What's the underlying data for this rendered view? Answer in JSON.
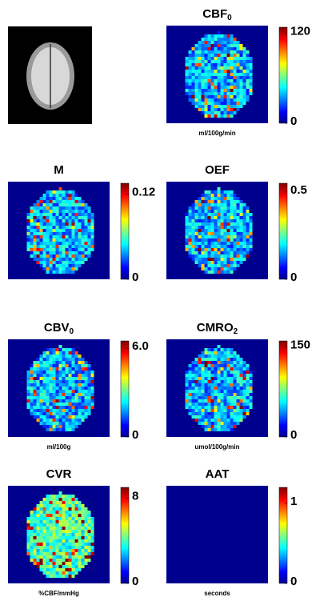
{
  "panels": [
    {
      "title": "CBF",
      "title_sub": "0",
      "clim": [
        0,
        128
      ],
      "cticks": [
        0,
        120
      ],
      "unit": "ml/100g/min"
    },
    {
      "title": "M",
      "clim": [
        0,
        0.135
      ],
      "cticks": [
        0,
        0.12
      ]
    },
    {
      "title": "OEF",
      "clim": [
        0,
        0.55
      ],
      "cticks": [
        0,
        0.5
      ]
    },
    {
      "title": "CBV",
      "title_sub": "0",
      "clim": [
        0,
        6.5
      ],
      "cticks": [
        0,
        {
          "value": 6,
          "label": "6.0"
        }
      ],
      "unit": "ml/100g"
    },
    {
      "title": "CMRO",
      "title_sub": "2",
      "clim": [
        0,
        160
      ],
      "cticks": [
        0,
        150
      ],
      "unit": "umol/100g/min"
    },
    {
      "title": "CVR",
      "clim": [
        0,
        9
      ],
      "cticks": [
        0,
        8
      ],
      "unit": "%CBF/mmHg"
    },
    {
      "title": "AAT",
      "clim": [
        0,
        1.2
      ],
      "cticks": [
        0,
        1
      ],
      "unit": "seconds"
    }
  ]
}
